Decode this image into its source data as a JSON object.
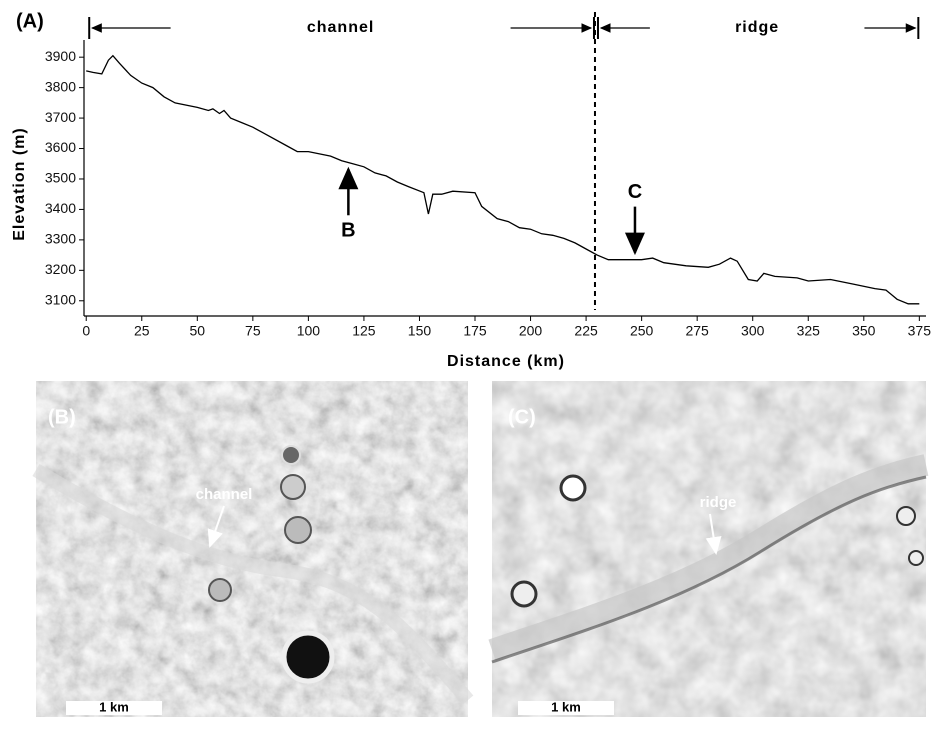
{
  "chart_data": {
    "type": "line",
    "panel_label": "(A)",
    "xlabel": "Distance (km)",
    "ylabel": "Elevation (m)",
    "x": [
      0,
      3,
      7,
      10,
      12,
      15,
      20,
      25,
      30,
      35,
      40,
      50,
      55,
      57,
      60,
      62,
      65,
      70,
      75,
      80,
      90,
      95,
      100,
      110,
      115,
      120,
      125,
      130,
      135,
      140,
      145,
      152,
      154,
      156,
      160,
      165,
      175,
      178,
      185,
      190,
      195,
      200,
      205,
      210,
      215,
      220,
      225,
      230,
      235,
      245,
      250,
      255,
      260,
      270,
      280,
      285,
      290,
      293,
      298,
      302,
      305,
      310,
      320,
      325,
      335,
      345,
      355,
      360,
      365,
      370,
      375
    ],
    "values": [
      3855,
      3850,
      3845,
      3890,
      3905,
      3880,
      3840,
      3815,
      3800,
      3770,
      3750,
      3735,
      3725,
      3730,
      3715,
      3725,
      3700,
      3685,
      3670,
      3650,
      3610,
      3590,
      3590,
      3575,
      3560,
      3550,
      3540,
      3520,
      3510,
      3490,
      3475,
      3455,
      3385,
      3450,
      3450,
      3460,
      3455,
      3410,
      3370,
      3360,
      3340,
      3335,
      3320,
      3315,
      3305,
      3290,
      3270,
      3250,
      3235,
      3235,
      3235,
      3240,
      3225,
      3215,
      3210,
      3220,
      3240,
      3230,
      3170,
      3165,
      3190,
      3180,
      3175,
      3165,
      3170,
      3155,
      3140,
      3135,
      3105,
      3090,
      3090
    ],
    "color": "#000000",
    "xlim": [
      -1,
      378
    ],
    "ylim": [
      3050,
      3940
    ],
    "xticks": [
      0,
      25,
      50,
      75,
      100,
      125,
      150,
      175,
      200,
      225,
      250,
      275,
      300,
      325,
      350,
      375
    ],
    "yticks": [
      3100,
      3200,
      3300,
      3400,
      3500,
      3600,
      3700,
      3800,
      3900
    ],
    "divider_x": 229,
    "spans": [
      {
        "text": "channel",
        "from": 0,
        "to": 229
      },
      {
        "text": "ridge",
        "from": 229,
        "to": 375
      }
    ],
    "annotations": [
      {
        "text": "B",
        "x": 118,
        "y": 3545,
        "direction": "up"
      },
      {
        "text": "C",
        "x": 247,
        "y": 3245,
        "direction": "down"
      }
    ]
  },
  "panels": [
    {
      "label": "(B)",
      "feature": "channel",
      "scale": "1 km"
    },
    {
      "label": "(C)",
      "feature": "ridge",
      "scale": "1 km"
    }
  ]
}
